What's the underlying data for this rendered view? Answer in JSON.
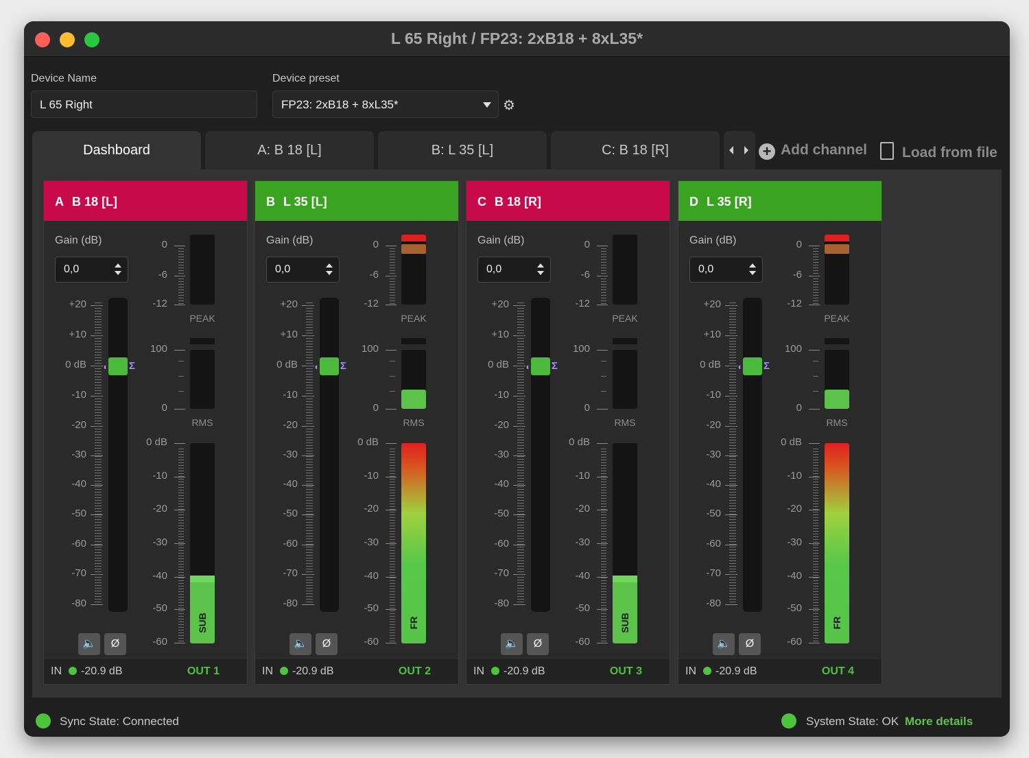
{
  "window": {
    "title": "L 65 Right / FP23: 2xB18 + 8xL35*"
  },
  "device": {
    "name_label": "Device Name",
    "name_value": "L 65 Right",
    "preset_label": "Device preset",
    "preset_value": "FP23: 2xB18 + 8xL35*"
  },
  "tabs": [
    "Dashboard",
    "A: B 18 [L]",
    "B: L 35 [L]",
    "C: B 18 [R]"
  ],
  "toolbar": {
    "add_channel": "Add channel",
    "load_from_file": "Load from file"
  },
  "fader_scale": [
    "+20",
    "+10",
    "0 dB",
    "-10",
    "-20",
    "-30",
    "-40",
    "-50",
    "-60",
    "-70",
    "-80"
  ],
  "peak_scale": [
    "0",
    "-6",
    "-12"
  ],
  "rms_scale": [
    "100",
    "0"
  ],
  "out_scale": [
    "0 dB",
    "-10",
    "-20",
    "-30",
    "-40",
    "-50",
    "-60"
  ],
  "meter_labels": {
    "peak": "PEAK",
    "rms": "RMS"
  },
  "gain_label": "Gain (dB)",
  "channels": [
    {
      "letter": "A",
      "name": "B 18 [L]",
      "color": "#c8094a",
      "gain": "0,0",
      "in_label": "IN",
      "in_level": "-20.9 dB",
      "out": "OUT 1",
      "type": "SUB",
      "rms_level": 0,
      "out_level": 0.34,
      "peak_indicator": false
    },
    {
      "letter": "B",
      "name": "L 35 [L]",
      "color": "#3ba322",
      "gain": "0,0",
      "in_label": "IN",
      "in_level": "-20.9 dB",
      "out": "OUT 2",
      "type": "FR",
      "rms_level": 0.33,
      "out_level": 1.0,
      "peak_indicator": true
    },
    {
      "letter": "C",
      "name": "B 18 [R]",
      "color": "#c8094a",
      "gain": "0,0",
      "in_label": "IN",
      "in_level": "-20.9 dB",
      "out": "OUT 3",
      "type": "SUB",
      "rms_level": 0,
      "out_level": 0.34,
      "peak_indicator": false
    },
    {
      "letter": "D",
      "name": "L 35 [R]",
      "color": "#3ba322",
      "gain": "0,0",
      "in_label": "IN",
      "in_level": "-20.9 dB",
      "out": "OUT 4",
      "type": "FR",
      "rms_level": 0.33,
      "out_level": 1.0,
      "peak_indicator": true
    }
  ],
  "status": {
    "sync": "Sync State: Connected",
    "system": "System State: OK",
    "more_details": "More details"
  },
  "colors": {
    "status_ok": "#4ec33d",
    "channel_red": "#c8094a",
    "channel_green": "#3ba322"
  }
}
